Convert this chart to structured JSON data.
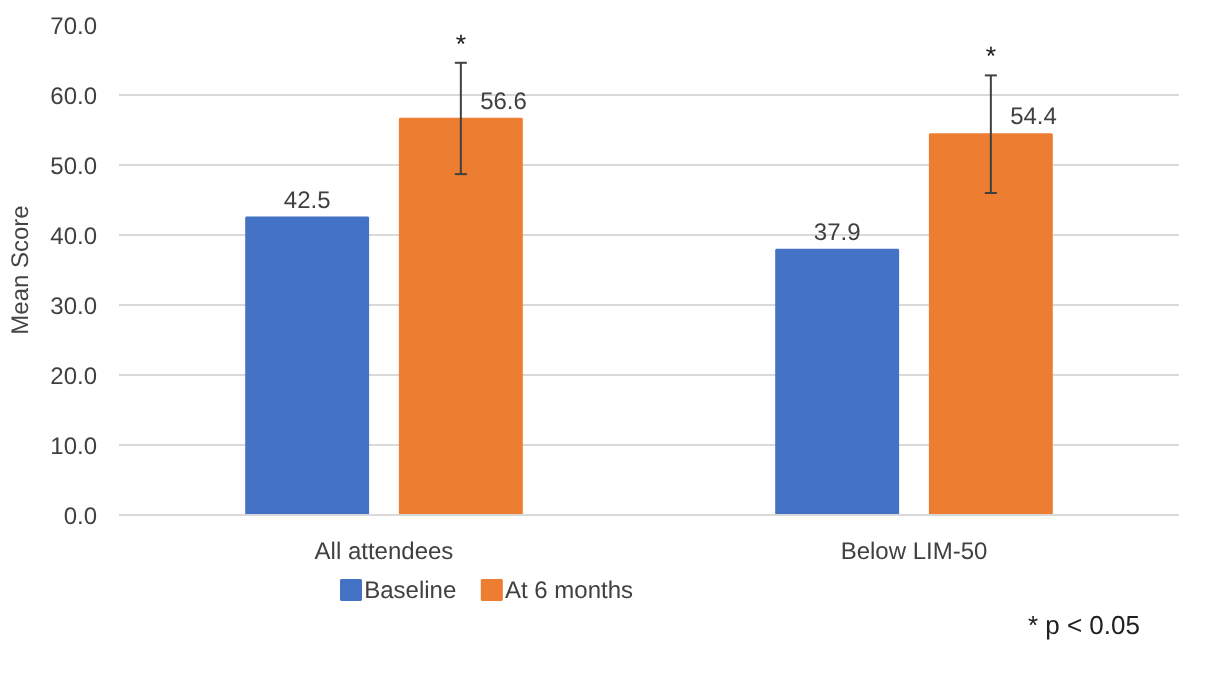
{
  "chart_data": {
    "type": "bar",
    "ylabel": "Mean Score",
    "categories": [
      "All attendees",
      "Below LIM-50"
    ],
    "series": [
      {
        "name": "Baseline",
        "color": "#4472c4",
        "values": [
          42.5,
          37.9
        ]
      },
      {
        "name": "At 6 months",
        "color": "#ed7d31",
        "values": [
          56.6,
          54.4
        ],
        "errors": [
          [
            48.7,
            64.6
          ],
          [
            46.0,
            62.8
          ]
        ]
      }
    ],
    "ylim": [
      0,
      70
    ],
    "yticks": [
      {
        "value": 0,
        "label": "0.0"
      },
      {
        "value": 10,
        "label": "10.0"
      },
      {
        "value": 20,
        "label": "20.0"
      },
      {
        "value": 30,
        "label": "30.0"
      },
      {
        "value": 40,
        "label": "40.0"
      },
      {
        "value": 50,
        "label": "50.0"
      },
      {
        "value": 60,
        "label": "60.0"
      },
      {
        "value": 70,
        "label": "70.0"
      }
    ],
    "grid": "y",
    "legend": "bottom",
    "data_labels": true,
    "annotations": [
      "*",
      "*",
      "* p < 0.05"
    ]
  }
}
